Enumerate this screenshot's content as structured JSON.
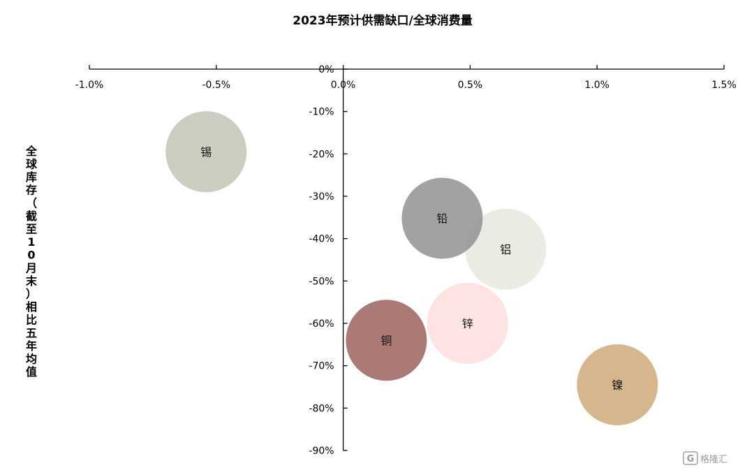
{
  "chart_data": {
    "type": "bubble",
    "title": "2023年预计供需缺口/全球消费量",
    "ylabel": "全球库存（截至10月末）相比五年均值",
    "xlim": [
      -0.01,
      0.015
    ],
    "ylim": [
      -0.9,
      0
    ],
    "x_ticks": [
      -0.01,
      -0.005,
      0,
      0.005,
      0.01,
      0.015
    ],
    "x_tick_labels": [
      "-1.0%",
      "-0.5%",
      "0.0%",
      "0.5%",
      "1.0%",
      "1.5%"
    ],
    "y_ticks": [
      0,
      -0.1,
      -0.2,
      -0.3,
      -0.4,
      -0.5,
      -0.6,
      -0.7,
      -0.8,
      -0.9
    ],
    "y_tick_labels": [
      "0%",
      "-10%",
      "-20%",
      "-30%",
      "-40%",
      "-50%",
      "-60%",
      "-70%",
      "-80%",
      "-90%"
    ],
    "grid": false,
    "points": [
      {
        "label": "锡",
        "x": -0.0054,
        "y": -0.195,
        "color": "#cccdc0"
      },
      {
        "label": "铝",
        "x": 0.0064,
        "y": -0.425,
        "color": "#ecebe3"
      },
      {
        "label": "铅",
        "x": 0.0039,
        "y": -0.352,
        "color": "#8e8e8e",
        "opacity": 0.82
      },
      {
        "label": "锌",
        "x": 0.0049,
        "y": -0.6,
        "color": "#fde4e3"
      },
      {
        "label": "铜",
        "x": 0.0017,
        "y": -0.64,
        "color": "#ab7a77"
      },
      {
        "label": "镍",
        "x": 0.0108,
        "y": -0.745,
        "color": "#d6b68c"
      }
    ]
  },
  "watermark": {
    "text": "格隆汇"
  }
}
